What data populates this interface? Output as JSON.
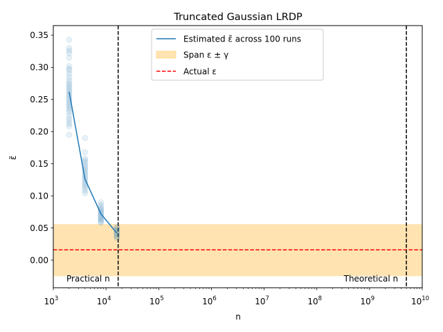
{
  "chart_data": {
    "type": "scatter",
    "title": "Truncated Gaussian LRDP",
    "xlabel": "n",
    "ylabel": "ε̃",
    "xscale": "log",
    "xlim": [
      1000,
      10000000000
    ],
    "ylim": [
      -0.043,
      0.365
    ],
    "x_ticks": [
      {
        "value": 1000,
        "base": "10",
        "exp": "3"
      },
      {
        "value": 10000,
        "base": "10",
        "exp": "4"
      },
      {
        "value": 100000,
        "base": "10",
        "exp": "5"
      },
      {
        "value": 1000000,
        "base": "10",
        "exp": "6"
      },
      {
        "value": 10000000,
        "base": "10",
        "exp": "7"
      },
      {
        "value": 100000000,
        "base": "10",
        "exp": "8"
      },
      {
        "value": 1000000000,
        "base": "10",
        "exp": "9"
      },
      {
        "value": 10000000000,
        "base": "10",
        "exp": "10"
      }
    ],
    "y_ticks": [
      {
        "value": 0.0,
        "label": "0.00"
      },
      {
        "value": 0.05,
        "label": "0.05"
      },
      {
        "value": 0.1,
        "label": "0.10"
      },
      {
        "value": 0.15,
        "label": "0.15"
      },
      {
        "value": 0.2,
        "label": "0.20"
      },
      {
        "value": 0.25,
        "label": "0.25"
      },
      {
        "value": 0.3,
        "label": "0.30"
      },
      {
        "value": 0.35,
        "label": "0.35"
      }
    ],
    "grid": false,
    "legend_position": "upper center",
    "colors": {
      "estimate": "#1f77b4",
      "span": "#ffa500",
      "actual": "#ff0000",
      "vline": "#000000"
    },
    "legend": [
      {
        "key": "estimate",
        "label": "Estimated ε̃ across 100 runs"
      },
      {
        "key": "span",
        "label": "Span ε ± γ"
      },
      {
        "key": "actual",
        "label": "Actual ε"
      }
    ],
    "span": {
      "ymin": -0.025,
      "ymax": 0.056
    },
    "actual_epsilon": 0.016,
    "mean_line": {
      "x": [
        2000,
        4000,
        8000,
        16000
      ],
      "y": [
        0.262,
        0.126,
        0.072,
        0.042
      ]
    },
    "scatter_points": [
      {
        "x": 2000,
        "y": [
          0.343,
          0.33,
          0.326,
          0.322,
          0.315,
          0.302,
          0.298,
          0.295,
          0.29,
          0.285,
          0.28,
          0.276,
          0.273,
          0.27,
          0.267,
          0.264,
          0.261,
          0.258,
          0.255,
          0.252,
          0.249,
          0.246,
          0.243,
          0.24,
          0.237,
          0.234,
          0.23,
          0.225,
          0.22,
          0.216,
          0.212,
          0.208,
          0.195
        ]
      },
      {
        "x": 4000,
        "y": [
          0.19,
          0.168,
          0.158,
          0.155,
          0.152,
          0.148,
          0.145,
          0.142,
          0.139,
          0.136,
          0.133,
          0.13,
          0.127,
          0.124,
          0.121,
          0.118,
          0.115,
          0.112,
          0.108,
          0.104
        ]
      },
      {
        "x": 8000,
        "y": [
          0.09,
          0.086,
          0.083,
          0.08,
          0.078,
          0.076,
          0.074,
          0.072,
          0.07,
          0.068,
          0.066,
          0.064,
          0.062,
          0.06,
          0.058
        ]
      },
      {
        "x": 16000,
        "y": [
          0.052,
          0.05,
          0.048,
          0.046,
          0.044,
          0.042,
          0.04,
          0.038,
          0.036,
          0.034
        ]
      }
    ],
    "vlines": [
      {
        "x": 17000,
        "label": "Practical n",
        "label_side": "left"
      },
      {
        "x": 5000000000,
        "label": "Theoretical n",
        "label_side": "left"
      }
    ]
  }
}
